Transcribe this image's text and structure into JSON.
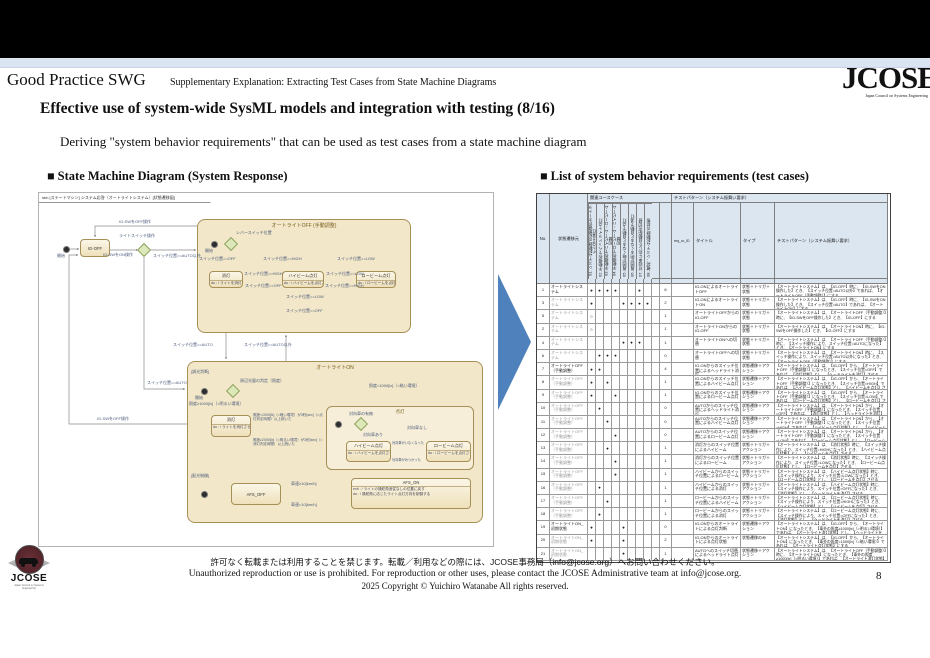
{
  "header": {
    "swg": "Good Practice SWG",
    "supplement": "Supplementary Explanation: Extracting Test Cases from State Machine Diagrams",
    "logo_text": "JCOSE",
    "logo_tagline": "Japan Council on Systems Engineering"
  },
  "title": "Effective use of system-wide SysML models and integration with testing (8/16)",
  "subtitle": "Deriving \"system behavior requirements\" that can be used as test cases from a state machine diagram",
  "left_section": {
    "heading": "■ State Machine Diagram (System Response)"
  },
  "right_section": {
    "heading": "■ List of system behavior requirements (test cases)",
    "table": {
      "group_usecases": "関連ユースケース",
      "group_pattern": "テストパターン（システム振舞い要求）",
      "cols": {
        "no": "No.",
        "state": "状態遷移元",
        "req": "req_ur_ID",
        "title": "タイトル",
        "type": "タイプ",
        "pattern": "テストパターン（システム振舞い要求）"
      },
      "uc_headers": [
        "01. システム起動時の初期値がオートライトOFF/消灯",
        "02. 手動操作でヘッドライト点灯",
        "03. 手動操作でハイビーム→ロービーム切替",
        "04. 手動操作でロービーム→ハイビーム切替",
        "05. 周囲が暗くなると自動で点灯",
        "06. 周囲が明るくなると自動で消灯",
        "07. 対向車に応じた自動配光切替",
        "08. 確認：システム起動時の状態"
      ],
      "rows": [
        {
          "no": "1",
          "state": "オートライトシステム",
          "em": "strong",
          "dots": [
            "●",
            "●",
            "●",
            "●",
            "",
            "",
            "●",
            ""
          ],
          "count": "6",
          "req": "",
          "title": "IG-ONによるオートライトOFF",
          "type": "状態＋トリガ＋状態",
          "pattern": "【オートライトシステム】は、【IG-OFF】時に、【IG-SWをON操作した】とき、【スイッチ位置=AUTO以外】であれば、【オートライトOFF（手動調整）】にする"
        },
        {
          "no": "3",
          "state": "オートライトシステム",
          "em": "muted",
          "dots": [
            "●",
            "",
            "",
            "",
            "●",
            "●",
            "●",
            "●"
          ],
          "count": "2",
          "req": "",
          "title": "IG-ONによるオートライトON",
          "type": "状態＋トリガ＋状態",
          "pattern": "【オートライトシステム】は、【IG-OFF】時に、【IG-SWをON操作した】とき、【スイッチ位置=AUTO】であれば、【オートライトON】にする"
        },
        {
          "no": "5",
          "state": "オートライトシステム",
          "em": "muted",
          "dots": [
            "○",
            "",
            "",
            "",
            "",
            "",
            "",
            ""
          ],
          "count": "1",
          "req": "",
          "title": "オートライトOFFからのIG-OFF",
          "type": "状態＋トリガ＋状態",
          "pattern": "【オートライトシステム】は、【オートライトOFF（手動調整）】時に、【IG-SWをOFF操作した】とき、【IG-OFF】にする"
        },
        {
          "no": "2",
          "state": "オートライトシステム",
          "em": "muted",
          "dots": [
            "○",
            "",
            "",
            "",
            "",
            "",
            "",
            ""
          ],
          "count": "1",
          "req": "",
          "title": "オートライトONからのIG-OFF",
          "type": "状態＋トリガ＋状態",
          "pattern": "【オートライトシステム】は、【オートライトON】時に、【IG-SWをOFF操作した】とき、【IG-OFF】にする"
        },
        {
          "no": "4",
          "state": "オートライトシステム",
          "em": "muted",
          "dots": [
            "",
            "",
            "",
            "",
            "●",
            "●",
            "●",
            ""
          ],
          "count": "1",
          "req": "",
          "title": "オートライトONへの切替",
          "type": "状態＋トリガ＋状態",
          "pattern": "【オートライトシステム】は、【オートライトOFF（手動調整）】時に、【スイッチ操作により、スイッチ位置=AUTOになった】とき、【オートライトON】にする"
        },
        {
          "no": "6",
          "state": "オートライトシステム",
          "em": "muted",
          "dots": [
            "",
            "●",
            "●",
            "●",
            "",
            "",
            "",
            ""
          ],
          "count": "0",
          "req": "",
          "title": "オートライトOFFへの切替",
          "type": "状態＋トリガ＋状態",
          "pattern": "【オートライトシステム】は、【オートライトON】時に、【スイッチ操作により、スイッチ位置=AUTO以外になった】とき、【オートライトOFF（手動調整）】にする"
        },
        {
          "no": "7",
          "state": "オートライトOFF（手動調整）",
          "em": "strong",
          "dots": [
            "●",
            "●",
            "",
            "",
            "",
            "",
            "",
            ""
          ],
          "count": "4",
          "req": "",
          "title": "IG-ONからのスイッチ位置によるヘッドライト消灯",
          "type": "状態遷移＋アクション",
          "pattern": "【オートライトシステム】は、【IG-OFF】から、【オートライトOFF（手動調整）】になったとき、【スイッチ位置=OFF】であれば、【消灯状態】とし、【ヘッドライトを消灯】させる"
        },
        {
          "no": "8",
          "state": "オートライトOFF（手動調整）",
          "em": "muted",
          "dots": [
            "●",
            "",
            "●",
            "",
            "",
            "",
            "",
            ""
          ],
          "count": "1",
          "req": "",
          "title": "IG-ONからのスイッチ位置によるハイビーム点灯",
          "type": "状態遷移＋アクション",
          "pattern": "【オートライトシステム】は、【IG-OFF】から、【オートライトOFF（手動調整）】になったとき、【スイッチ位置=HIGH】であれば、【ハイビーム点灯状態】とし、【ハイビームを点灯】させる"
        },
        {
          "no": "9",
          "state": "オートライトOFF（手動調整）",
          "em": "muted",
          "dots": [
            "●",
            "",
            "",
            "●",
            "",
            "",
            "",
            ""
          ],
          "count": "1",
          "req": "",
          "title": "IG-ONからのスイッチ位置によるロービーム点灯",
          "type": "状態遷移＋アクション",
          "pattern": "【オートライトシステム】は、【IG-OFF】から、【オートライトOFF（手動調整）】になったとき、【スイッチ位置=LOW】であれば、【ロービーム点灯状態】とし、【ロービームを点灯】させる"
        },
        {
          "no": "10",
          "state": "オートライトOFF（手動調整）",
          "em": "muted",
          "dots": [
            "",
            "●",
            "",
            "",
            "",
            "",
            "",
            ""
          ],
          "count": "0",
          "req": "",
          "title": "AUTOからのスイッチ位置によるヘッドライト消灯",
          "type": "状態遷移＋アクション",
          "pattern": "【オートライトシステム】は、【オートライトON】から、【オートライトOFF（手動調整）】になったとき、【スイッチ位置=OFF】であれば、【消灯状態】とし、【ヘッドライトを消灯】させる"
        },
        {
          "no": "11",
          "state": "オートライトOFF（手動調整）",
          "em": "muted",
          "dots": [
            "",
            "",
            "●",
            "",
            "",
            "",
            "",
            ""
          ],
          "count": "0",
          "req": "",
          "title": "AUTOからのスイッチ位置によるハイビーム点灯",
          "type": "状態遷移＋アクション",
          "pattern": "【オートライトシステム】は、【オートライトON】から、【オートライトOFF（手動調整）】になったとき、【スイッチ位置=HIGH】であれば、【ハイビーム点灯状態】とし、【ハイビームを点灯】させる"
        },
        {
          "no": "12",
          "state": "オートライトOFF（手動調整）",
          "em": "muted",
          "dots": [
            "",
            "",
            "",
            "●",
            "",
            "",
            "",
            ""
          ],
          "count": "0",
          "req": "",
          "title": "AUTOからのスイッチ位置によるロービーム点灯",
          "type": "状態遷移＋アクション",
          "pattern": "【オートライトシステム】は、【オートライトON】から、【オートライトOFF（手動調整）】になったとき、【スイッチ位置=LOW】であれば、【ロービーム点灯状態】とし、【ロービームを点灯】させる"
        },
        {
          "no": "13",
          "state": "オートライトOFF（手動調整）",
          "em": "muted",
          "dots": [
            "",
            "",
            "●",
            "",
            "",
            "",
            "",
            ""
          ],
          "count": "1",
          "req": "",
          "title": "消灯からのスイッチ位置によるハイビーム",
          "type": "状態＋トリガ＋アクション",
          "pattern": "【オートライトシステム】は、【消灯状態】時に、【スイッチ操作により、スイッチ位置=HIGHになった】とき、【ハイビーム点灯状態】とし、【ハイビームを点灯】させる"
        },
        {
          "no": "14",
          "state": "オートライトOFF（手動調整）",
          "em": "muted",
          "dots": [
            "",
            "",
            "",
            "●",
            "",
            "",
            "",
            ""
          ],
          "count": "1",
          "req": "",
          "title": "消灯からのスイッチ位置によるロービーム",
          "type": "状態＋トリガ＋アクション",
          "pattern": "【オートライトシステム】は、【消灯状態】時に、【スイッチ操作により、スイッチ位置=LOWになった】とき、【ロービーム点灯状態】とし、【ロービームを点灯】させる"
        },
        {
          "no": "15",
          "state": "オートライトOFF（手動調整）",
          "em": "muted",
          "dots": [
            "",
            "",
            "",
            "●",
            "",
            "",
            "",
            ""
          ],
          "count": "1",
          "req": "",
          "title": "ハイビームからのスイッチ位置によるロービーム",
          "type": "状態＋トリガ＋アクション",
          "pattern": "【オートライトシステム】は、【ハイビーム点灯状態】時に、【スイッチ操作により、スイッチ位置=LOWになった】とき、【ロービーム点灯状態】とし、【ロービームを点灯】させる"
        },
        {
          "no": "16",
          "state": "オートライトOFF（手動調整）",
          "em": "muted",
          "dots": [
            "",
            "●",
            "",
            "",
            "",
            "",
            "",
            ""
          ],
          "count": "1",
          "req": "",
          "title": "ハイビームからのスイッチ位置による消灯",
          "type": "状態＋トリガ＋アクション",
          "pattern": "【オートライトシステム】は、【ハイビーム点灯状態】時に、【スイッチ操作により、スイッチ位置=OFFになった】とき、【消灯状態】とし、【ヘッドライトを消灯】させる"
        },
        {
          "no": "17",
          "state": "オートライトOFF（手動調整）",
          "em": "muted",
          "dots": [
            "",
            "",
            "●",
            "",
            "",
            "",
            "",
            ""
          ],
          "count": "1",
          "req": "",
          "title": "ロービームからのスイッチ位置によるハイビーム",
          "type": "状態＋トリガ＋アクション",
          "pattern": "【オートライトシステム】は、【ロービーム点灯状態】時に、【スイッチ操作により、スイッチ位置=HIGHになった】とき、【ハイビーム点灯状態】とし、【ハイビームを点灯】させる"
        },
        {
          "no": "18",
          "state": "オートライトOFF（手動調整）",
          "em": "muted",
          "dots": [
            "",
            "●",
            "",
            "",
            "",
            "",
            "",
            ""
          ],
          "count": "1",
          "req": "",
          "title": "ロービームからのスイッチ位置による消灯",
          "type": "状態＋トリガ＋アクション",
          "pattern": "【オートライトシステム】は、【ロービーム点灯状態】時に、【スイッチ操作により、スイッチ位置=OFFになった】とき、【消灯状態】とし、【ヘッドライトを消灯】させる"
        },
        {
          "no": "19",
          "state": "オートライトON_初期状態",
          "em": "strong",
          "dots": [
            "●",
            "",
            "",
            "",
            "●",
            "",
            "",
            ""
          ],
          "count": "0",
          "req": "",
          "title": "IG-ONからのオートライトによる点灯判断",
          "type": "状態遷移＋アクション",
          "pattern": "【オートライトシステム】は、【IG-OFF】から、【オートライトON】になったとき、【車外の照度≥1000[lx]（=明るい環境）】であれば、【オートライト消灯状態】とし、【ヘッドライトを消灯】させる"
        },
        {
          "no": "20",
          "state": "オートライトON_初期状態",
          "em": "muted",
          "dots": [
            "●",
            "",
            "",
            "",
            "●",
            "",
            "",
            ""
          ],
          "count": "2",
          "req": "",
          "title": "IG-ONからのオートライトによる点灯状態",
          "type": "状態遷移のみ",
          "pattern": "【オートライトシステム】は、【IG-OFF】から、【オートライトON】になったとき、【車外の照度<1000[lx]（=暗い環境）】であれば、【オートライト点灯状態】にする"
        },
        {
          "no": "21",
          "state": "オートライトON_初期状態",
          "em": "muted",
          "dots": [
            "",
            "",
            "",
            "",
            "●",
            "",
            "",
            ""
          ],
          "count": "1",
          "req": "",
          "title": "AUTOへのスイッチ切替によるヘッドライト点灯",
          "type": "状態遷移＋アクション",
          "pattern": "【オートライトシステム】は、【オートライトOFF（手動調整）】時に、【オートライトON】になったとき、【車外の照度≥1000[lx]（=明るい環境）】であれば、【オートライト消灯状態】とし、【ヘッドライトを消灯】させる"
        }
      ]
    }
  },
  "diagram": {
    "tab": "stm [ステートマシン] システム応答（オートライトシステム）[状態遷移図]",
    "lbl_start": "開始",
    "ig_off": "IG-OFF",
    "t_igsw_off": "IG-SWをOFF操作",
    "t_igsw_on": "IG-SWをON操作",
    "lbl_lightswitch": "ライトスイッチ操作",
    "g_auto_other": "スイッチ位置==AUTO以外",
    "g_auto": "スイッチ位置==AUTO",
    "bt_down": "スイッチ位置==AUTO",
    "bt_up": "スイッチ位置==AUTO以外",
    "off": {
      "title": "オートライトOFF (手動調整)",
      "choice": "レバースイッチ位置",
      "g_off": "スイッチ位置==OFF",
      "g_high": "スイッチ位置==HIGH",
      "g_low": "スイッチ位置==LOW",
      "s_off": {
        "t": "消灯",
        "a": "do : / ライトを消灯させる"
      },
      "s_high": {
        "t": "ハイビーム点灯",
        "a": "do : / ハイビームを点灯させる"
      },
      "s_low": {
        "t": "ロービーム点灯",
        "a": "do : / ロービームを点灯させる"
      },
      "t_oh": "スイッチ位置==HIGH",
      "t_ho": "スイッチ位置==OFF",
      "t_hl": "スイッチ位置==LOW",
      "t_lh": "スイッチ位置==HIGH",
      "t_ol": "スイッチ位置==LOW",
      "t_lo": "スイッチ位置==OFF"
    },
    "on": {
      "title": "オートライトON",
      "r1": "[調光判断]",
      "r2": "[配光制御]",
      "choice": "周辺光量の判定（照度）",
      "g_bright": "照度≥1000[lx]（=明るい環境）",
      "g_dark": "照度<1000[lx]（=暗い環境）",
      "s_out": {
        "t": "消灯",
        "a": "do : / ライトを消灯させる"
      },
      "t_lit": "照度<1000[lx]（=暗い環境）が3秒[sec]（=点灯判定時間）以上続いた",
      "t_out": "照度≥2000[lx]（=明るい環境）が3秒[sec]（=消灯判定時間）以上続いた",
      "lit": {
        "t": "点灯",
        "choice": "対向車の有無",
        "g_yes": "対向車あり",
        "g_no": "対向車なし",
        "s_h": {
          "t": "ハイビーム点灯",
          "a": "do : / ハイビームを点灯させる"
        },
        "s_l": {
          "t": "ロービーム点灯",
          "a": "do : / ロービームを点灯させる"
        },
        "t_gone": "対向車がいなくなった",
        "t_found": "対向車がみつかった"
      },
      "afs_off": "AFS_OFF",
      "afs_on": {
        "t": "AFS_ON",
        "e": "exit : / ライトの操舵角追従なしの位置に戻す",
        "a": "do : / 操舵角に応じたライト点灯方向を制御する"
      },
      "t_vup": "車速≥10[km/h]",
      "t_vdn": "車速<10[km/h]"
    }
  },
  "footer": {
    "jp": "許可なく転載または利用することを禁じます。転載／利用などの際には、JCOSE事務局（info@jcose.org）へお問い合わせください。",
    "en": "Unauthorized reproduction or use is prohibited.  For reproduction or other uses, please contact the JCOSE Administrative team at info@jcose.org.",
    "copyright": "2025 Copyright © Yuichiro Watanabe All rights reserved."
  },
  "bottom_logo": {
    "text": "JCOSE",
    "tagline": "Japan Council on Systems Engineering"
  },
  "page_number": "8",
  "colors": {
    "accent_arrow": "#4f81bd",
    "strip": "#dbe5f1",
    "table_header": "#dce6f1",
    "state_fill": "#f2e7c9",
    "choice_fill": "#dce8b8"
  }
}
